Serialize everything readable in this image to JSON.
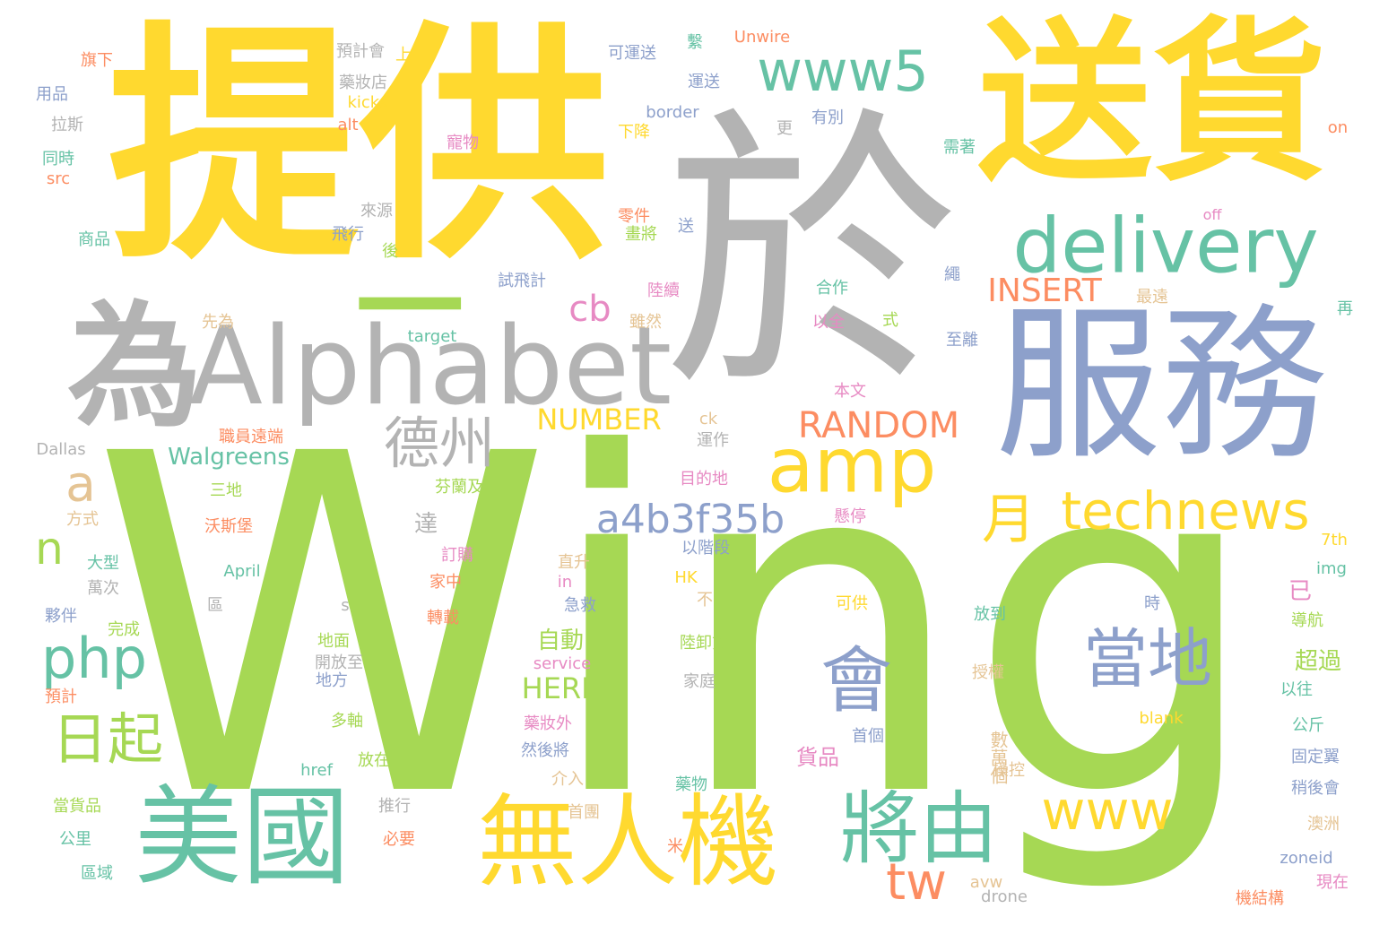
{
  "colors": {
    "green": "#a6d854",
    "yellow": "#ffd92f",
    "gray": "#b3b3b3",
    "blue": "#8da0cb",
    "teal": "#66c2a5",
    "orange": "#fc8d62",
    "pink": "#e78ac3",
    "tan": "#e5c494"
  },
  "words": [
    {
      "text": "Wing",
      "color": "green"
    },
    {
      "text": "提供",
      "color": "yellow"
    },
    {
      "text": "於",
      "color": "gray"
    },
    {
      "text": "送貨",
      "color": "yellow"
    },
    {
      "text": "服務",
      "color": "blue"
    },
    {
      "text": "為",
      "color": "gray"
    },
    {
      "text": "Alphabet",
      "color": "gray"
    },
    {
      "text": "一",
      "color": "green"
    },
    {
      "text": "delivery",
      "color": "teal"
    },
    {
      "text": "www5",
      "color": "teal"
    },
    {
      "text": "美國",
      "color": "teal"
    },
    {
      "text": "無人機",
      "color": "yellow"
    },
    {
      "text": "將由",
      "color": "teal"
    },
    {
      "text": "會",
      "color": "blue"
    },
    {
      "text": "當地",
      "color": "blue"
    },
    {
      "text": "amp",
      "color": "yellow"
    },
    {
      "text": "technews",
      "color": "yellow"
    },
    {
      "text": "php",
      "color": "teal"
    },
    {
      "text": "日起",
      "color": "green"
    },
    {
      "text": "德州",
      "color": "gray"
    },
    {
      "text": "月",
      "color": "yellow"
    },
    {
      "text": "www",
      "color": "yellow"
    },
    {
      "text": "tw",
      "color": "orange"
    },
    {
      "text": "a4b3f35b",
      "color": "blue"
    },
    {
      "text": "RANDOM",
      "color": "orange"
    },
    {
      "text": "INSERT",
      "color": "orange"
    },
    {
      "text": "NUMBER",
      "color": "yellow"
    },
    {
      "text": "HERE",
      "color": "green"
    },
    {
      "text": "cb",
      "color": "pink"
    },
    {
      "text": "a",
      "color": "tan"
    },
    {
      "text": "n",
      "color": "green"
    },
    {
      "text": "Walgreens",
      "color": "teal"
    },
    {
      "text": "達",
      "color": "gray"
    },
    {
      "text": "自動",
      "color": "green"
    },
    {
      "text": "超過",
      "color": "green"
    },
    {
      "text": "已",
      "color": "pink"
    },
    {
      "text": "貨品",
      "color": "pink"
    },
    {
      "text": "數萬個",
      "color": "tan"
    },
    {
      "text": "Unwire",
      "color": "orange"
    },
    {
      "text": "繫",
      "color": "teal"
    },
    {
      "text": "可運送",
      "color": "blue"
    },
    {
      "text": "運送",
      "color": "blue"
    },
    {
      "text": "border",
      "color": "blue"
    },
    {
      "text": "有別",
      "color": "blue"
    },
    {
      "text": "更",
      "color": "gray"
    },
    {
      "text": "下降",
      "color": "yellow"
    },
    {
      "text": "寵物",
      "color": "pink"
    },
    {
      "text": "需著",
      "color": "teal"
    },
    {
      "text": "on",
      "color": "orange"
    },
    {
      "text": "旗下",
      "color": "orange"
    },
    {
      "text": "用品",
      "color": "blue"
    },
    {
      "text": "拉斯",
      "color": "gray"
    },
    {
      "text": "同時",
      "color": "teal"
    },
    {
      "text": "src",
      "color": "orange"
    },
    {
      "text": "商品",
      "color": "teal"
    },
    {
      "text": "預計會",
      "color": "gray"
    },
    {
      "text": "上",
      "color": "yellow"
    },
    {
      "text": "藥妝店",
      "color": "gray"
    },
    {
      "text": "kicks",
      "color": "yellow"
    },
    {
      "text": "alt",
      "color": "orange"
    },
    {
      "text": "來源",
      "color": "gray"
    },
    {
      "text": "飛行",
      "color": "blue"
    },
    {
      "text": "後",
      "color": "green"
    },
    {
      "text": "零件",
      "color": "orange"
    },
    {
      "text": "畫將",
      "color": "green"
    },
    {
      "text": "送",
      "color": "blue"
    },
    {
      "text": "off",
      "color": "pink"
    },
    {
      "text": "試飛計",
      "color": "blue"
    },
    {
      "text": "繩",
      "color": "blue"
    },
    {
      "text": "陸續",
      "color": "pink"
    },
    {
      "text": "雖然",
      "color": "tan"
    },
    {
      "text": "合作",
      "color": "teal"
    },
    {
      "text": "以全",
      "color": "pink"
    },
    {
      "text": "式",
      "color": "green"
    },
    {
      "text": "最遠",
      "color": "tan"
    },
    {
      "text": "再",
      "color": "teal"
    },
    {
      "text": "至離",
      "color": "blue"
    },
    {
      "text": "先為",
      "color": "tan"
    },
    {
      "text": "target",
      "color": "teal"
    },
    {
      "text": "本文",
      "color": "pink"
    },
    {
      "text": "職員遠端",
      "color": "orange"
    },
    {
      "text": "ck",
      "color": "tan"
    },
    {
      "text": "運作",
      "color": "gray"
    },
    {
      "text": "Dallas",
      "color": "gray"
    },
    {
      "text": "目的地",
      "color": "pink"
    },
    {
      "text": "三地",
      "color": "green"
    },
    {
      "text": "芬蘭及",
      "color": "green"
    },
    {
      "text": "懸停",
      "color": "pink"
    },
    {
      "text": "方式",
      "color": "tan"
    },
    {
      "text": "沃斯堡",
      "color": "orange"
    },
    {
      "text": "以階段",
      "color": "blue"
    },
    {
      "text": "7th",
      "color": "yellow"
    },
    {
      "text": "大型",
      "color": "teal"
    },
    {
      "text": "訂購",
      "color": "pink"
    },
    {
      "text": "直升",
      "color": "tan"
    },
    {
      "text": "img",
      "color": "teal"
    },
    {
      "text": "萬次",
      "color": "gray"
    },
    {
      "text": "April",
      "color": "teal"
    },
    {
      "text": "家中",
      "color": "orange"
    },
    {
      "text": "in",
      "color": "pink"
    },
    {
      "text": "HK",
      "color": "yellow"
    },
    {
      "text": "不",
      "color": "tan"
    },
    {
      "text": "夥伴",
      "color": "blue"
    },
    {
      "text": "區",
      "color": "gray"
    },
    {
      "text": "s",
      "color": "gray"
    },
    {
      "text": "急救",
      "color": "blue"
    },
    {
      "text": "可供",
      "color": "yellow"
    },
    {
      "text": "時",
      "color": "blue"
    },
    {
      "text": "導航",
      "color": "green"
    },
    {
      "text": "完成",
      "color": "green"
    },
    {
      "text": "轉載",
      "color": "orange"
    },
    {
      "text": "放到",
      "color": "teal"
    },
    {
      "text": "地面",
      "color": "green"
    },
    {
      "text": "陸卸貨",
      "color": "green"
    },
    {
      "text": "開放至",
      "color": "gray"
    },
    {
      "text": "service",
      "color": "pink"
    },
    {
      "text": "授權",
      "color": "tan"
    },
    {
      "text": "以往",
      "color": "teal"
    },
    {
      "text": "預計",
      "color": "orange"
    },
    {
      "text": "地方",
      "color": "blue"
    },
    {
      "text": "家庭",
      "color": "gray"
    },
    {
      "text": "blank",
      "color": "yellow"
    },
    {
      "text": "多軸",
      "color": "green"
    },
    {
      "text": "藥妝外",
      "color": "pink"
    },
    {
      "text": "首個",
      "color": "blue"
    },
    {
      "text": "公斤",
      "color": "teal"
    },
    {
      "text": "放在",
      "color": "green"
    },
    {
      "text": "然後將",
      "color": "blue"
    },
    {
      "text": "固定翼",
      "color": "blue"
    },
    {
      "text": "href",
      "color": "teal"
    },
    {
      "text": "操控",
      "color": "tan"
    },
    {
      "text": "介入",
      "color": "tan"
    },
    {
      "text": "藥物",
      "color": "teal"
    },
    {
      "text": "稍後會",
      "color": "blue"
    },
    {
      "text": "當貨品",
      "color": "green"
    },
    {
      "text": "推行",
      "color": "gray"
    },
    {
      "text": "首團",
      "color": "tan"
    },
    {
      "text": "公里",
      "color": "teal"
    },
    {
      "text": "必要",
      "color": "orange"
    },
    {
      "text": "澳洲",
      "color": "tan"
    },
    {
      "text": "米",
      "color": "orange"
    },
    {
      "text": "區域",
      "color": "teal"
    },
    {
      "text": "avw",
      "color": "tan"
    },
    {
      "text": "zoneid",
      "color": "blue"
    },
    {
      "text": "現在",
      "color": "pink"
    },
    {
      "text": "drone",
      "color": "gray"
    },
    {
      "text": "機結構",
      "color": "orange"
    }
  ]
}
